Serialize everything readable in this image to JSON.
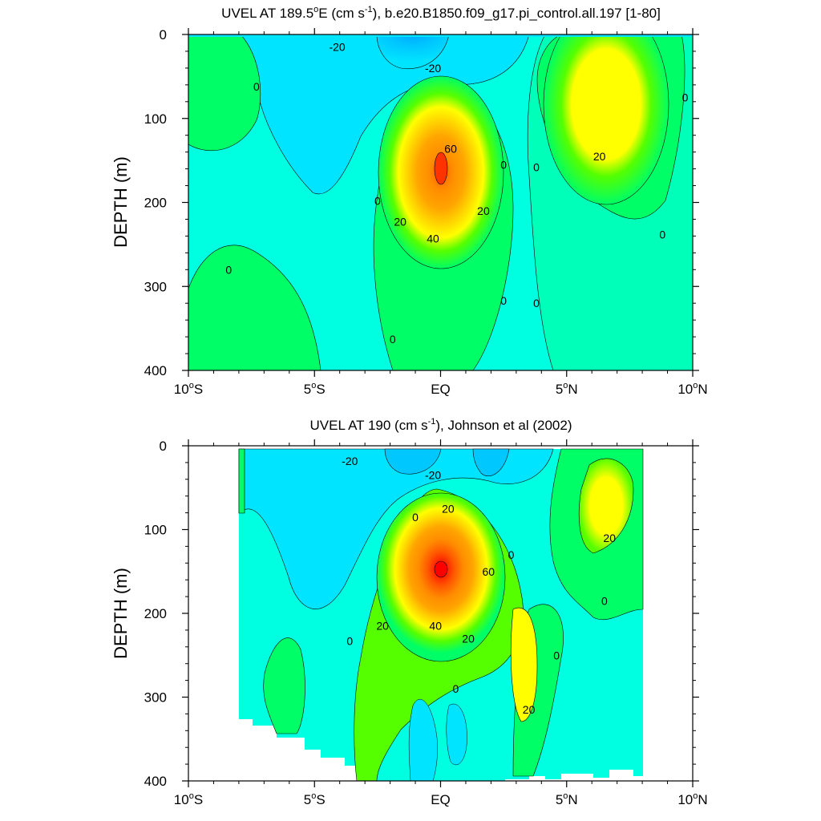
{
  "chart_data": [
    {
      "type": "contour",
      "title_text": "UVEL AT 189.5",
      "title_sup_deg": "o",
      "title_after_deg": "E (cm s",
      "title_sup_exp": "-1",
      "title_tail": "), b.e20.B1850.f09_g17.pi_control.all.197 [1-80]",
      "xlabel": "",
      "ylabel": "DEPTH (m)",
      "xlim": [
        -10,
        10
      ],
      "ylim": [
        400,
        0
      ],
      "x_ticks": [
        {
          "value": -10,
          "num": "10",
          "deg": "o",
          "hem": "S"
        },
        {
          "value": -5,
          "num": "5",
          "deg": "o",
          "hem": "S"
        },
        {
          "value": 0,
          "num": "EQ",
          "deg": "",
          "hem": ""
        },
        {
          "value": 5,
          "num": "5",
          "deg": "o",
          "hem": "N"
        },
        {
          "value": 10,
          "num": "10",
          "deg": "o",
          "hem": "N"
        }
      ],
      "y_ticks": [
        0,
        100,
        200,
        300,
        400
      ],
      "color_levels": [
        -30,
        -20,
        -10,
        0,
        10,
        20,
        30,
        40,
        50,
        60,
        70,
        80
      ],
      "colors": [
        "#00aaff",
        "#00e4ff",
        "#00ffe0",
        "#00ffb8",
        "#00ff66",
        "#55ff00",
        "#ffff00",
        "#ffd700",
        "#ffa500",
        "#ff8c00",
        "#ff5500",
        "#ff1a00"
      ],
      "background_color": "#00ffe0",
      "features": [
        {
          "name": "equatorial-undercurrent",
          "x": 0.0,
          "depth": 165,
          "max": 70
        },
        {
          "name": "north-equatorial-countercurrent",
          "x": 6.3,
          "depth": 70,
          "max": 30
        },
        {
          "name": "south-equatorial-current",
          "x": -1.0,
          "depth": 0,
          "min": -30
        }
      ],
      "contour_labels": [
        {
          "text": "-20",
          "x": -4.1,
          "depth": 15
        },
        {
          "text": "-20",
          "x": -0.3,
          "depth": 40
        },
        {
          "text": "0",
          "x": -7.3,
          "depth": 62
        },
        {
          "text": "60",
          "x": 0.4,
          "depth": 136
        },
        {
          "text": "0",
          "x": 2.5,
          "depth": 155
        },
        {
          "text": "0",
          "x": 3.8,
          "depth": 158
        },
        {
          "text": "20",
          "x": 6.3,
          "depth": 145
        },
        {
          "text": "0",
          "x": 9.7,
          "depth": 75
        },
        {
          "text": "0",
          "x": -2.5,
          "depth": 198
        },
        {
          "text": "20",
          "x": -1.6,
          "depth": 223
        },
        {
          "text": "40",
          "x": -0.3,
          "depth": 243
        },
        {
          "text": "20",
          "x": 1.7,
          "depth": 210
        },
        {
          "text": "0",
          "x": 8.8,
          "depth": 238
        },
        {
          "text": "0",
          "x": -8.4,
          "depth": 280
        },
        {
          "text": "0",
          "x": 2.5,
          "depth": 317
        },
        {
          "text": "0",
          "x": 3.8,
          "depth": 320
        },
        {
          "text": "0",
          "x": -1.9,
          "depth": 363
        }
      ]
    },
    {
      "type": "contour",
      "title_text": "UVEL AT 190 (cm s",
      "title_sup_exp": "-1",
      "title_tail": "), Johnson et al (2002)",
      "xlabel": "",
      "ylabel": "DEPTH (m)",
      "xlim": [
        -10,
        10
      ],
      "ylim": [
        400,
        0
      ],
      "data_x_range": [
        -8,
        8
      ],
      "x_ticks": [
        {
          "value": -10,
          "num": "10",
          "deg": "o",
          "hem": "S"
        },
        {
          "value": -5,
          "num": "5",
          "deg": "o",
          "hem": "S"
        },
        {
          "value": 0,
          "num": "EQ",
          "deg": "",
          "hem": ""
        },
        {
          "value": 5,
          "num": "5",
          "deg": "o",
          "hem": "N"
        },
        {
          "value": 10,
          "num": "10",
          "deg": "o",
          "hem": "N"
        }
      ],
      "y_ticks": [
        0,
        100,
        200,
        300,
        400
      ],
      "color_levels": [
        -30,
        -20,
        -10,
        0,
        10,
        20,
        30,
        40,
        50,
        60,
        70,
        80,
        90
      ],
      "colors": [
        "#00aaff",
        "#00e4ff",
        "#00ffe0",
        "#00ffb8",
        "#00ff66",
        "#55ff00",
        "#ffff00",
        "#ffd700",
        "#ffa500",
        "#ff8c00",
        "#ff5500",
        "#ff1a00",
        "#ff0000"
      ],
      "background_color": "#00ffe0",
      "features": [
        {
          "name": "equatorial-undercurrent",
          "x": 0.0,
          "depth": 150,
          "max": 90
        },
        {
          "name": "north-equatorial-countercurrent",
          "x": 6.5,
          "depth": 80,
          "max": 30
        },
        {
          "name": "secondary-eastward-jet",
          "x": 3.2,
          "depth": 250,
          "max": 30
        },
        {
          "name": "south-equatorial-current",
          "x": -2.0,
          "depth": 0,
          "min": -30
        }
      ],
      "contour_labels": [
        {
          "text": "-20",
          "x": -3.6,
          "depth": 18
        },
        {
          "text": "-20",
          "x": -0.3,
          "depth": 35
        },
        {
          "text": "20",
          "x": 0.3,
          "depth": 75
        },
        {
          "text": "0",
          "x": -1.0,
          "depth": 85
        },
        {
          "text": "20",
          "x": 6.7,
          "depth": 110
        },
        {
          "text": "0",
          "x": 2.8,
          "depth": 130
        },
        {
          "text": "60",
          "x": 1.9,
          "depth": 150
        },
        {
          "text": "0",
          "x": 6.5,
          "depth": 185
        },
        {
          "text": "20",
          "x": -2.3,
          "depth": 215
        },
        {
          "text": "40",
          "x": -0.2,
          "depth": 215
        },
        {
          "text": "20",
          "x": 1.1,
          "depth": 230
        },
        {
          "text": "0",
          "x": -3.6,
          "depth": 233
        },
        {
          "text": "0",
          "x": 4.6,
          "depth": 250
        },
        {
          "text": "0",
          "x": 0.6,
          "depth": 290
        },
        {
          "text": "20",
          "x": 3.5,
          "depth": 315
        }
      ]
    }
  ]
}
